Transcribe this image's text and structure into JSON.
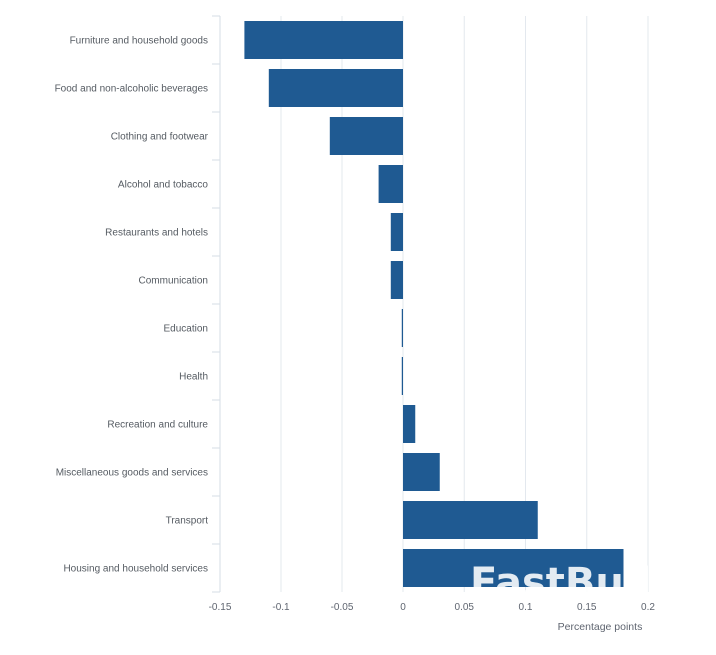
{
  "chart_data": {
    "type": "bar",
    "orientation": "horizontal",
    "categories": [
      "Furniture and household goods",
      "Food and non-alcoholic beverages",
      "Clothing and footwear",
      "Alcohol and tobacco",
      "Restaurants and hotels",
      "Communication",
      "Education",
      "Health",
      "Recreation and culture",
      "Miscellaneous goods and services",
      "Transport",
      "Housing and household services"
    ],
    "values": [
      -0.13,
      -0.11,
      -0.06,
      -0.02,
      -0.01,
      -0.01,
      -0.001,
      -0.001,
      0.01,
      0.03,
      0.11,
      0.18
    ],
    "xlabel": "Percentage points",
    "ylabel": "",
    "xlim": [
      -0.15,
      0.2
    ],
    "xticks": [
      -0.15,
      -0.1,
      -0.05,
      0,
      0.05,
      0.1,
      0.15,
      0.2
    ],
    "xtick_labels": [
      "-0.15",
      "-0.1",
      "-0.05",
      "0",
      "0.05",
      "0.1",
      "0.15",
      "0.2"
    ],
    "grid": "vertical",
    "bar_color": "#1f5a92",
    "grid_color": "#e3e8ee"
  },
  "watermark": "FastBull"
}
